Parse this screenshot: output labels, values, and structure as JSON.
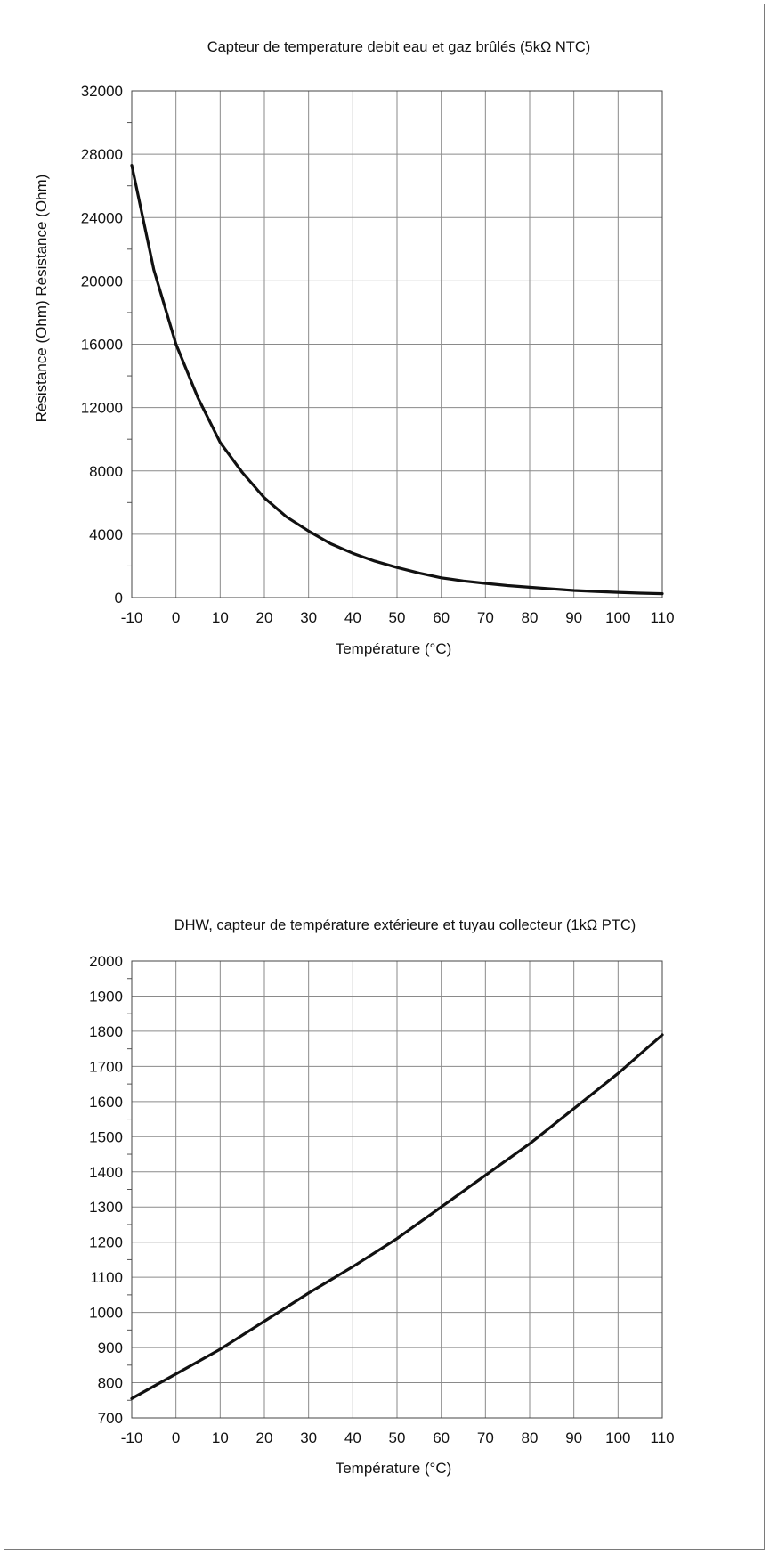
{
  "chart_data": [
    {
      "type": "line",
      "title": "Capteur de temperature debit eau et gaz brûlés (5kΩ NTC)",
      "xlabel": "Température (°C)",
      "ylabel": "Résistance (Ohm) Résistance (Ohm)",
      "xlim": [
        -10,
        110
      ],
      "ylim": [
        0,
        32000
      ],
      "x_ticks": [
        "-10",
        "0",
        "10",
        "20",
        "30",
        "40",
        "50",
        "60",
        "70",
        "80",
        "90",
        "100",
        "110"
      ],
      "y_ticks": [
        "0",
        "4000",
        "8000",
        "12000",
        "16000",
        "20000",
        "24000",
        "28000",
        "32000"
      ],
      "grid": true,
      "line_color": "#111111",
      "series": [
        {
          "x": [
            -10,
            -5,
            0,
            5,
            10,
            15,
            20,
            25,
            30,
            35,
            40,
            45,
            50,
            55,
            60,
            65,
            70,
            75,
            80,
            85,
            90,
            95,
            100,
            105,
            110
          ],
          "values": [
            27300,
            20700,
            16000,
            12600,
            9800,
            7900,
            6300,
            5100,
            4200,
            3400,
            2800,
            2300,
            1900,
            1550,
            1250,
            1050,
            900,
            760,
            650,
            550,
            450,
            390,
            330,
            280,
            250
          ]
        }
      ]
    },
    {
      "type": "line",
      "title": "DHW, capteur de température extérieure et tuyau collecteur (1kΩ PTC)",
      "xlabel": "Température (°C)",
      "ylabel": "",
      "xlim": [
        -10,
        110
      ],
      "ylim": [
        700,
        2000
      ],
      "x_ticks": [
        "-10",
        "0",
        "10",
        "20",
        "30",
        "40",
        "50",
        "60",
        "70",
        "80",
        "90",
        "100",
        "110"
      ],
      "y_ticks": [
        "700",
        "800",
        "900",
        "1000",
        "1100",
        "1200",
        "1300",
        "1400",
        "1500",
        "1600",
        "1700",
        "1800",
        "1900",
        "2000"
      ],
      "grid": true,
      "line_color": "#111111",
      "series": [
        {
          "x": [
            -10,
            0,
            10,
            20,
            30,
            40,
            50,
            60,
            70,
            80,
            90,
            100,
            110
          ],
          "values": [
            755,
            825,
            895,
            975,
            1055,
            1130,
            1210,
            1300,
            1390,
            1480,
            1580,
            1680,
            1790
          ]
        }
      ]
    }
  ]
}
